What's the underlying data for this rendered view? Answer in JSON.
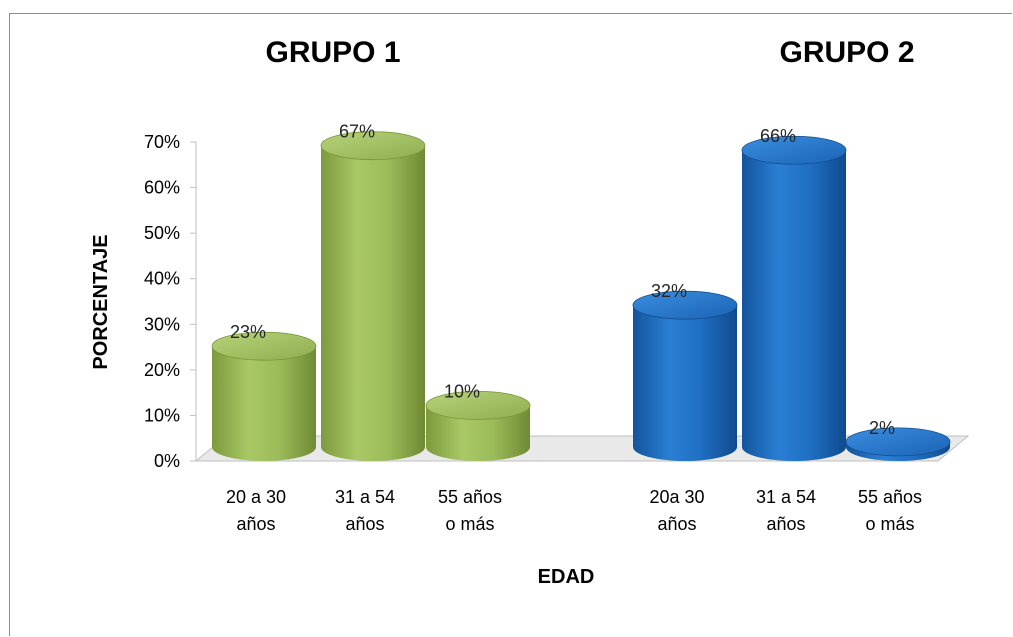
{
  "chart_data": {
    "type": "bar",
    "ylabel": "PORCENTAJE",
    "xlabel": "EDAD",
    "ylim": [
      0,
      70
    ],
    "yticks": [
      "0%",
      "10%",
      "20%",
      "30%",
      "40%",
      "50%",
      "60%",
      "70%"
    ],
    "grid": false,
    "groups": [
      {
        "title": "GRUPO 1",
        "color": "#9bbb59",
        "categories": [
          [
            "20 a 30",
            "años"
          ],
          [
            "31 a 54",
            "años"
          ],
          [
            "55 años",
            "o más"
          ]
        ],
        "values": [
          23,
          67,
          10
        ],
        "labels": [
          "23%",
          "67%",
          "10%"
        ]
      },
      {
        "title": "GRUPO  2",
        "color": "#1f6fc4",
        "categories": [
          [
            "20a 30",
            "años"
          ],
          [
            "31 a 54",
            "años"
          ],
          [
            "55 años",
            "o más"
          ]
        ],
        "values": [
          32,
          66,
          2
        ],
        "labels": [
          "32%",
          "66%",
          "2%"
        ]
      }
    ]
  }
}
